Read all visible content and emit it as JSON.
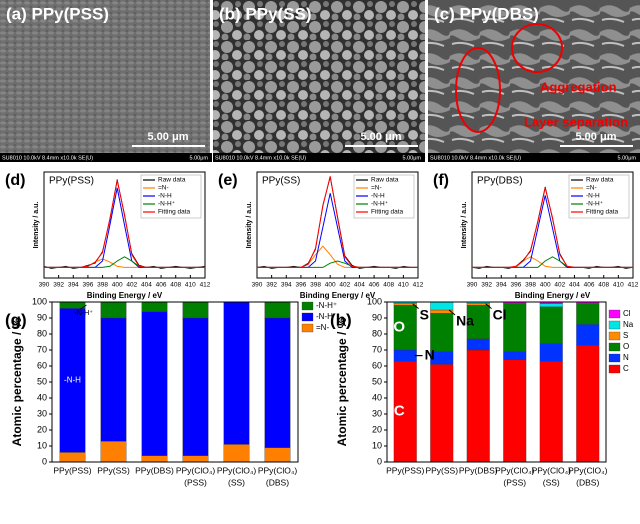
{
  "images": [
    {
      "label": "(a) PPy(PSS)",
      "scale": "5.00 μm",
      "footer": "SU8010 10.0kV 8.4mm x10.0k SE(U)",
      "footer_scale": "5.00μm"
    },
    {
      "label": "(b) PPy(SS)",
      "scale": "5.00 μm",
      "footer": "SU8010 10.0kV 8.4mm x10.0k SE(U)",
      "footer_scale": "5.00μm"
    },
    {
      "label": "(c) PPy(DBS)",
      "scale": "5.00 μm",
      "footer": "SU8010 10.0kV 8.4mm x10.0k SE(U)",
      "footer_scale": "5.00μm",
      "annotations": [
        "Aggregation",
        "Layer separation"
      ]
    }
  ],
  "chart_data": [
    {
      "type": "line",
      "panel": "(d)",
      "title": "PPy(PSS)",
      "xlabel": "Binding Energy / eV",
      "ylabel": "Intensity / a.u.",
      "x": [
        390,
        391,
        392,
        393,
        394,
        395,
        396,
        397,
        398,
        399,
        400,
        401,
        402,
        403,
        404,
        405,
        406,
        407,
        408,
        409,
        410,
        411,
        412
      ],
      "xlim": [
        390,
        412
      ],
      "xticks": [
        390,
        392,
        394,
        396,
        398,
        400,
        402,
        404,
        406,
        408,
        410,
        412
      ],
      "ylim": [
        0,
        100
      ],
      "series": [
        {
          "name": "Raw data",
          "color": "#000000",
          "values": [
            11,
            9,
            10,
            11,
            9,
            10,
            12,
            14,
            25,
            55,
            93,
            59,
            23,
            12,
            10,
            11,
            9,
            10,
            11,
            10,
            9,
            10,
            11
          ]
        },
        {
          "name": "=N-",
          "color": "#ff8000",
          "values": [
            10,
            10,
            10,
            10,
            10,
            10,
            11,
            15,
            18,
            15,
            11,
            10,
            10,
            10,
            10,
            10,
            10,
            10,
            10,
            10,
            10,
            10,
            10
          ]
        },
        {
          "name": "-N-H",
          "color": "#0000ff",
          "values": [
            10,
            10,
            10,
            10,
            10,
            10,
            10,
            10,
            16,
            50,
            85,
            50,
            16,
            10,
            10,
            10,
            10,
            10,
            10,
            10,
            10,
            10,
            10
          ]
        },
        {
          "name": "-N-H⁺",
          "color": "#008000",
          "values": [
            10,
            10,
            10,
            10,
            10,
            10,
            10,
            10,
            10,
            11,
            16,
            20,
            16,
            11,
            10,
            10,
            10,
            10,
            10,
            10,
            10,
            10,
            10
          ]
        },
        {
          "name": "Fitting data",
          "color": "#ff0000",
          "values": [
            10,
            10,
            10,
            10,
            10,
            10,
            11,
            15,
            24,
            56,
            92,
            60,
            22,
            11,
            10,
            10,
            10,
            10,
            10,
            10,
            10,
            10,
            10
          ]
        }
      ]
    },
    {
      "type": "line",
      "panel": "(e)",
      "title": "PPy(SS)",
      "xlabel": "Binding Energy / eV",
      "ylabel": "Intensity / a.u.",
      "x": [
        390,
        391,
        392,
        393,
        394,
        395,
        396,
        397,
        398,
        399,
        400,
        401,
        402,
        403,
        404,
        405,
        406,
        407,
        408,
        409,
        410,
        411,
        412
      ],
      "xlim": [
        390,
        412
      ],
      "xticks": [
        390,
        392,
        394,
        396,
        398,
        400,
        402,
        404,
        406,
        408,
        410,
        412
      ],
      "ylim": [
        0,
        100
      ],
      "series": [
        {
          "name": "Raw data",
          "color": "#000000",
          "values": [
            10,
            11,
            9,
            10,
            10,
            11,
            10,
            14,
            27,
            69,
            95,
            58,
            21,
            12,
            9,
            10,
            11,
            10,
            10,
            9,
            11,
            10,
            10
          ]
        },
        {
          "name": "=N-",
          "color": "#ff8000",
          "values": [
            10,
            10,
            10,
            10,
            10,
            10,
            10,
            13,
            22,
            30,
            22,
            13,
            10,
            10,
            10,
            10,
            10,
            10,
            10,
            10,
            10,
            10,
            10
          ]
        },
        {
          "name": "-N-H",
          "color": "#0000ff",
          "values": [
            10,
            10,
            10,
            10,
            10,
            10,
            10,
            10,
            16,
            48,
            80,
            48,
            16,
            10,
            10,
            10,
            10,
            10,
            10,
            10,
            10,
            10,
            10
          ]
        },
        {
          "name": "-N-H⁺",
          "color": "#008000",
          "values": [
            10,
            10,
            10,
            10,
            10,
            10,
            10,
            10,
            10,
            10,
            14,
            16,
            14,
            11,
            10,
            10,
            10,
            10,
            10,
            10,
            10,
            10,
            10
          ]
        },
        {
          "name": "Fitting data",
          "color": "#ff0000",
          "values": [
            10,
            10,
            10,
            10,
            10,
            10,
            10,
            13,
            28,
            68,
            96,
            57,
            20,
            11,
            10,
            10,
            10,
            10,
            10,
            10,
            10,
            10,
            10
          ]
        }
      ]
    },
    {
      "type": "line",
      "panel": "(f)",
      "title": "PPy(DBS)",
      "xlabel": "Binding Energy / eV",
      "ylabel": "Intensity / a.u.",
      "x": [
        390,
        391,
        392,
        393,
        394,
        395,
        396,
        397,
        398,
        399,
        400,
        401,
        402,
        403,
        404,
        405,
        406,
        407,
        408,
        409,
        410,
        411,
        412
      ],
      "xlim": [
        390,
        412
      ],
      "xticks": [
        390,
        392,
        394,
        396,
        398,
        400,
        402,
        404,
        406,
        408,
        410,
        412
      ],
      "ylim": [
        0,
        100
      ],
      "series": [
        {
          "name": "Raw data",
          "color": "#000000",
          "values": [
            10,
            9,
            11,
            10,
            10,
            9,
            11,
            17,
            25,
            54,
            86,
            56,
            23,
            11,
            10,
            10,
            9,
            11,
            10,
            10,
            11,
            9,
            10
          ]
        },
        {
          "name": "=N-",
          "color": "#ff8000",
          "values": [
            10,
            10,
            10,
            10,
            10,
            10,
            10,
            16,
            20,
            16,
            11,
            10,
            10,
            10,
            10,
            10,
            10,
            10,
            10,
            10,
            10,
            10,
            10
          ]
        },
        {
          "name": "-N-H",
          "color": "#0000ff",
          "values": [
            10,
            10,
            10,
            10,
            10,
            10,
            10,
            10,
            16,
            47,
            78,
            47,
            16,
            10,
            10,
            10,
            10,
            10,
            10,
            10,
            10,
            10,
            10
          ]
        },
        {
          "name": "-N-H⁺",
          "color": "#008000",
          "values": [
            10,
            10,
            10,
            10,
            10,
            10,
            10,
            10,
            10,
            10,
            16,
            20,
            16,
            11,
            10,
            10,
            10,
            10,
            10,
            10,
            10,
            10,
            10
          ]
        },
        {
          "name": "Fitting data",
          "color": "#ff0000",
          "values": [
            10,
            10,
            10,
            10,
            10,
            10,
            11,
            16,
            26,
            53,
            85,
            57,
            22,
            11,
            10,
            10,
            10,
            10,
            10,
            10,
            10,
            10,
            10
          ]
        }
      ]
    },
    {
      "type": "bar",
      "stacked": true,
      "panel": "(g)",
      "ylabel": "Atomic percentage / %",
      "categories": [
        [
          "PPy(PSS)"
        ],
        [
          "PPy(SS)"
        ],
        [
          "PPy(DBS)"
        ],
        [
          "PPy(ClO₄)",
          "(PSS)"
        ],
        [
          "PPy(ClO₄)",
          "(SS)"
        ],
        [
          "PPy(ClO₄)",
          "(DBS)"
        ]
      ],
      "ylim": [
        0,
        100
      ],
      "yticks": [
        0,
        10,
        20,
        30,
        40,
        50,
        60,
        70,
        80,
        90,
        100
      ],
      "series": [
        {
          "name": "=N-",
          "color": "#ff8000",
          "values": [
            6,
            13,
            4,
            4,
            11,
            9
          ]
        },
        {
          "name": "-N-H",
          "color": "#0000ff",
          "values": [
            90,
            77,
            90,
            86,
            89,
            81
          ]
        },
        {
          "name": "-N-H⁺",
          "color": "#008000",
          "values": [
            4,
            10,
            6,
            10,
            0,
            10
          ]
        }
      ],
      "annotations": [
        "-N-H⁺",
        "-N-H",
        "=N-"
      ]
    },
    {
      "type": "bar",
      "stacked": true,
      "panel": "(h)",
      "ylabel": "Atomic percentage / %",
      "categories": [
        [
          "PPy(PSS)"
        ],
        [
          "PPy(SS)"
        ],
        [
          "PPy(DBS)"
        ],
        [
          "PPy(ClO₄)",
          "(PSS)"
        ],
        [
          "PPy(ClO₄)",
          "(SS)"
        ],
        [
          "PPy(ClO₄)",
          "(DBS)"
        ]
      ],
      "ylim": [
        0,
        100
      ],
      "yticks": [
        0,
        10,
        20,
        30,
        40,
        50,
        60,
        70,
        80,
        90,
        100
      ],
      "series": [
        {
          "name": "C",
          "color": "#ff0000",
          "values": [
            63,
            61,
            70,
            64,
            63,
            73
          ]
        },
        {
          "name": "N",
          "color": "#0033ff",
          "values": [
            7,
            8,
            7,
            5,
            11,
            13
          ]
        },
        {
          "name": "O",
          "color": "#008000",
          "values": [
            28,
            24,
            21,
            30,
            23,
            13
          ]
        },
        {
          "name": "S",
          "color": "#ff8c00",
          "values": [
            1,
            2,
            1,
            0,
            0,
            0
          ]
        },
        {
          "name": "Na",
          "color": "#00e5e5",
          "values": [
            1,
            5,
            1,
            0,
            2,
            0
          ]
        },
        {
          "name": "Cl",
          "color": "#ff00ff",
          "values": [
            0,
            0,
            0,
            1,
            1,
            1
          ]
        }
      ],
      "annotations": [
        "O",
        "N",
        "C",
        "S",
        "Na",
        "Cl"
      ]
    }
  ]
}
